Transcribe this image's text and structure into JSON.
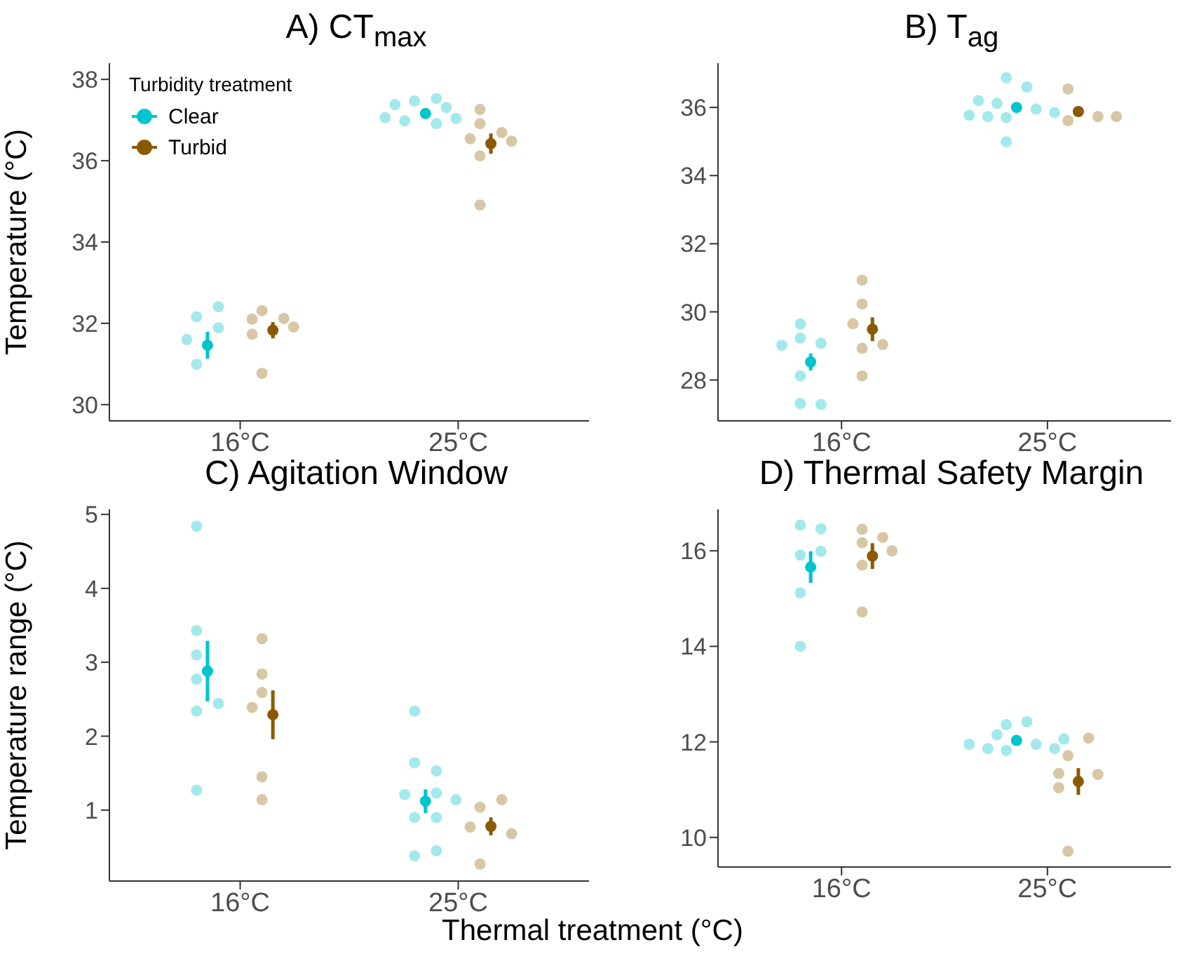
{
  "chart_data": [
    {
      "type": "scatter",
      "title": "A) CT$_{max}$",
      "ylabel": "Temperature (°C)",
      "legend_title": "Turbidity treatment",
      "legend": "top left",
      "marker": "circle",
      "categories": [
        "16°C",
        "25°C"
      ],
      "ylim": [
        29.6,
        38.4
      ],
      "yticks": [
        30,
        32,
        34,
        36,
        38
      ],
      "series": [
        {
          "name": "Clear",
          "color": "#00c5cd",
          "values": [
            31.46,
            37.16
          ],
          "errors": [
            0.33,
            null
          ]
        },
        {
          "name": "Turbid",
          "color": "#8b5a00",
          "values": [
            31.83,
            36.42
          ],
          "errors": [
            0.2,
            0.25
          ]
        },
        {
          "color": "#a3e9ec",
          "x": [
            "16°C",
            "16°C",
            "16°C",
            "16°C",
            "16°C",
            "25°C",
            "25°C",
            "25°C",
            "25°C",
            "25°C",
            "25°C",
            "25°C",
            "25°C"
          ],
          "values": [
            32.16,
            31.6,
            32.41,
            31.89,
            30.99,
            37.47,
            36.98,
            37.31,
            36.91,
            37.38,
            37.53,
            37.04,
            37.06
          ]
        },
        {
          "color": "#d8c7a6",
          "x": [
            "16°C",
            "16°C",
            "16°C",
            "16°C",
            "16°C",
            "16°C",
            "25°C",
            "25°C",
            "25°C",
            "25°C",
            "25°C",
            "25°C",
            "25°C"
          ],
          "values": [
            32.31,
            32.12,
            32.1,
            31.73,
            31.91,
            30.77,
            37.26,
            36.91,
            36.69,
            36.54,
            36.48,
            36.12,
            34.91
          ]
        }
      ]
    },
    {
      "type": "scatter",
      "title": "B) T$_{ag}$",
      "marker": "circle",
      "categories": [
        "16°C",
        "25°C"
      ],
      "ylim": [
        26.8,
        37.3
      ],
      "yticks": [
        28,
        30,
        32,
        34,
        36
      ],
      "series": [
        {
          "color": "#00c5cd",
          "values": [
            28.53,
            36.0
          ],
          "errors": [
            0.25,
            null
          ]
        },
        {
          "color": "#8b5a00",
          "values": [
            29.49,
            35.88
          ],
          "errors": [
            0.35,
            null
          ]
        },
        {
          "color": "#a3e9ec",
          "x": [
            "16°C",
            "16°C",
            "16°C",
            "16°C",
            "16°C",
            "16°C",
            "16°C",
            "25°C",
            "25°C",
            "25°C",
            "25°C",
            "25°C",
            "25°C",
            "25°C",
            "25°C",
            "25°C",
            "25°C"
          ],
          "values": [
            29.23,
            29.08,
            29.64,
            29.02,
            28.12,
            27.31,
            27.28,
            36.87,
            36.6,
            36.12,
            35.95,
            35.7,
            35.73,
            36.2,
            35.85,
            35.77,
            34.99
          ]
        },
        {
          "color": "#d8c7a6",
          "x": [
            "16°C",
            "16°C",
            "16°C",
            "16°C",
            "16°C",
            "16°C",
            "25°C",
            "25°C",
            "25°C",
            "25°C"
          ],
          "values": [
            30.23,
            30.93,
            29.65,
            28.93,
            29.04,
            28.12,
            36.54,
            35.73,
            35.73,
            35.61
          ]
        }
      ]
    },
    {
      "type": "scatter",
      "title": "C) Agitation Window",
      "ylabel": "Temperature range (°C)",
      "xlabel": "Thermal treatment (°C)",
      "marker": "circle",
      "categories": [
        "16°C",
        "25°C"
      ],
      "ylim": [
        0.04,
        5.07
      ],
      "yticks": [
        1,
        2,
        3,
        4,
        5
      ],
      "series": [
        {
          "color": "#00c5cd",
          "values": [
            2.88,
            1.12
          ],
          "errors": [
            0.41,
            0.16
          ]
        },
        {
          "color": "#8b5a00",
          "values": [
            2.29,
            0.78
          ],
          "errors": [
            0.33,
            0.12
          ]
        },
        {
          "color": "#a3e9ec",
          "x": [
            "16°C",
            "16°C",
            "16°C",
            "16°C",
            "16°C",
            "16°C",
            "16°C",
            "25°C",
            "25°C",
            "25°C",
            "25°C",
            "25°C",
            "25°C",
            "25°C",
            "25°C",
            "25°C",
            "25°C"
          ],
          "values": [
            4.84,
            3.43,
            3.1,
            2.77,
            2.34,
            2.44,
            1.27,
            2.34,
            1.64,
            1.53,
            1.21,
            1.23,
            1.14,
            0.9,
            0.9,
            0.38,
            0.45
          ]
        },
        {
          "color": "#d8c7a6",
          "x": [
            "16°C",
            "16°C",
            "16°C",
            "16°C",
            "16°C",
            "16°C",
            "25°C",
            "25°C",
            "25°C",
            "25°C",
            "25°C"
          ],
          "values": [
            3.32,
            2.84,
            2.59,
            2.39,
            1.45,
            1.14,
            1.04,
            1.14,
            0.77,
            0.68,
            0.27
          ]
        }
      ]
    },
    {
      "type": "scatter",
      "title": "D) Thermal Safety Margin",
      "marker": "circle",
      "categories": [
        "16°C",
        "25°C"
      ],
      "ylim": [
        9.38,
        16.87
      ],
      "yticks": [
        10,
        12,
        14,
        16
      ],
      "series": [
        {
          "color": "#00c5cd",
          "values": [
            15.66,
            12.03
          ],
          "errors": [
            0.33,
            null
          ]
        },
        {
          "color": "#8b5a00",
          "values": [
            15.89,
            11.17
          ],
          "errors": [
            0.27,
            0.28
          ]
        },
        {
          "color": "#a3e9ec",
          "x": [
            "16°C",
            "16°C",
            "16°C",
            "16°C",
            "16°C",
            "16°C",
            "25°C",
            "25°C",
            "25°C",
            "25°C",
            "25°C",
            "25°C",
            "25°C",
            "25°C",
            "25°C"
          ],
          "values": [
            16.54,
            16.46,
            15.91,
            15.99,
            15.12,
            14.0,
            12.36,
            12.15,
            12.42,
            11.95,
            11.82,
            11.86,
            11.86,
            11.95,
            12.06
          ]
        },
        {
          "color": "#d8c7a6",
          "x": [
            "16°C",
            "16°C",
            "16°C",
            "16°C",
            "16°C",
            "16°C",
            "25°C",
            "25°C",
            "25°C",
            "25°C",
            "25°C",
            "25°C"
          ],
          "values": [
            16.45,
            16.28,
            16.17,
            16.0,
            15.7,
            14.72,
            12.08,
            11.71,
            11.34,
            11.32,
            11.04,
            9.71
          ]
        }
      ]
    }
  ]
}
